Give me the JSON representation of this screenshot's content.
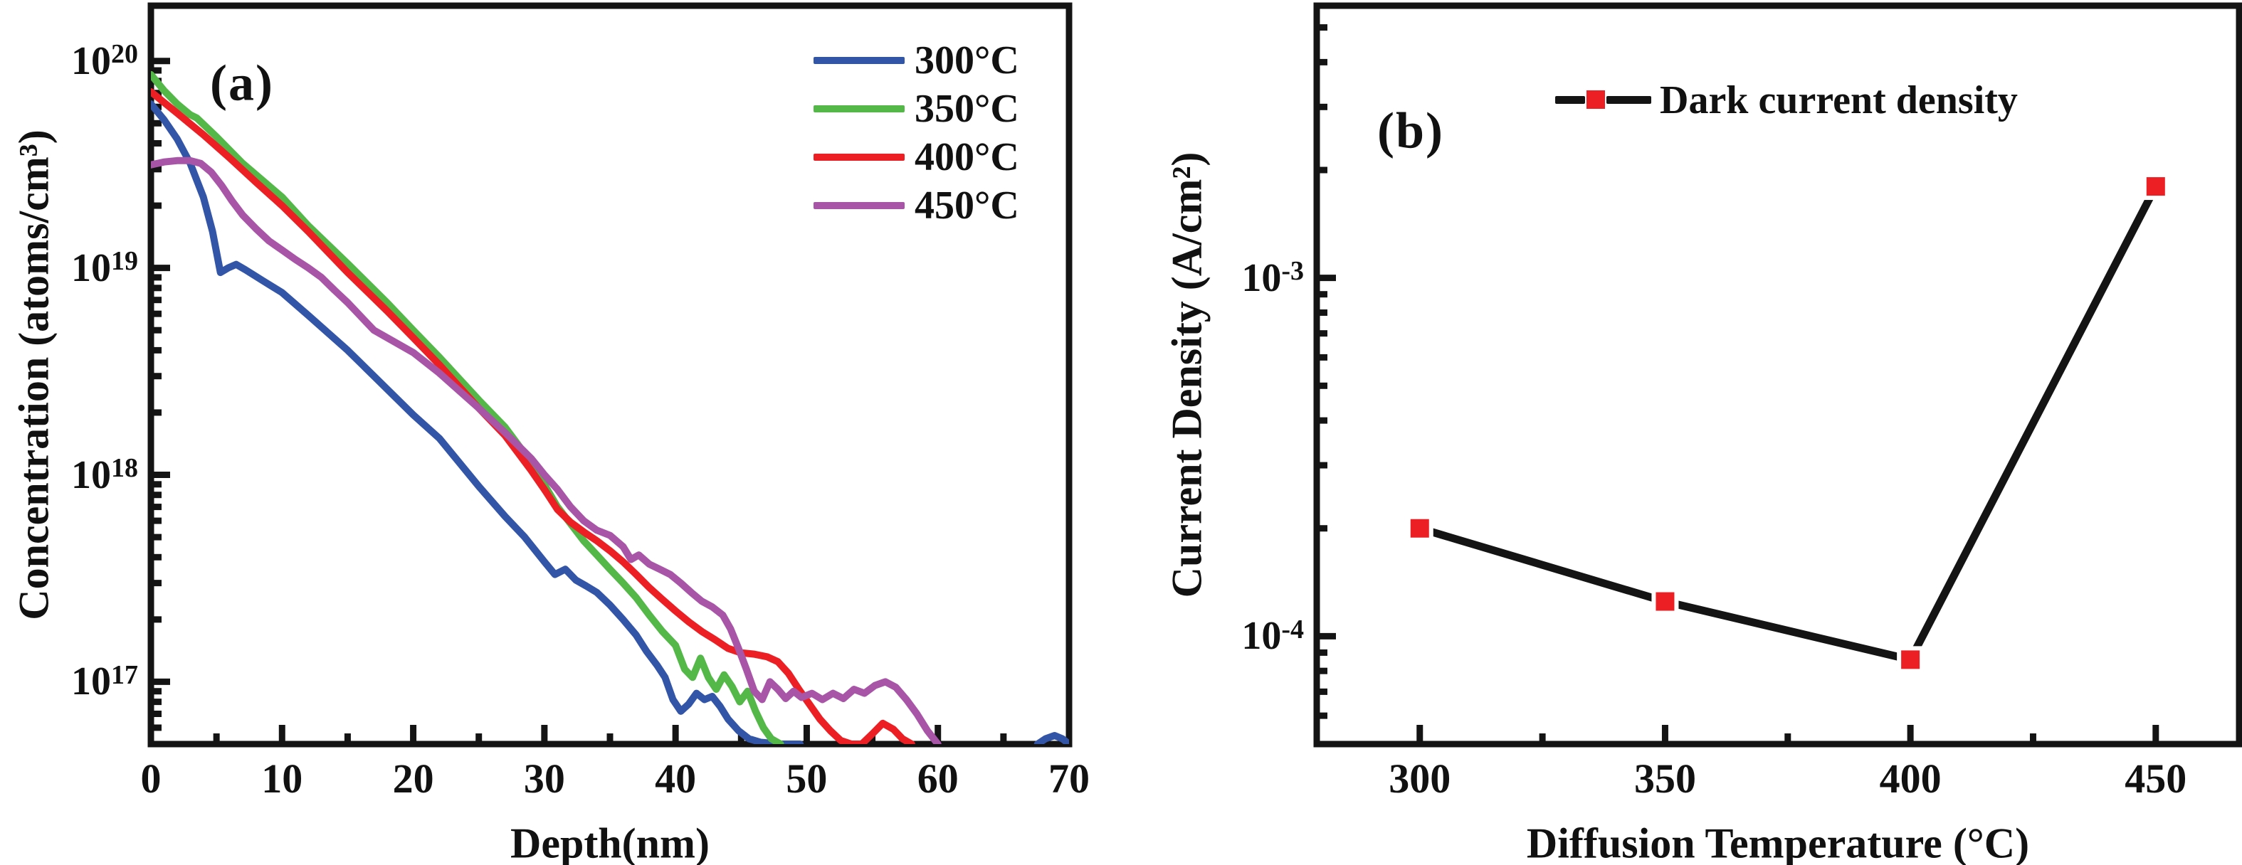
{
  "figure": {
    "background": "#ffffff",
    "axis_color": "#141414"
  },
  "chart_data": [
    {
      "id": "a",
      "type": "line",
      "panel_label": "(a)",
      "xlabel": "Depth(nm)",
      "ylabel": "Concentration (atoms/cm³)",
      "xlim": [
        0,
        70
      ],
      "x_major_ticks": [
        0,
        10,
        20,
        30,
        40,
        50,
        60,
        70
      ],
      "x_minor_ticks": [
        5,
        15,
        25,
        35,
        45,
        55,
        65
      ],
      "yscale": "log",
      "ylim": [
        5e+16,
        1.85e+20
      ],
      "y_major_exponents": [
        20,
        19,
        18,
        17
      ],
      "grid": false,
      "legend_position": "top-right-inside",
      "legend": [
        {
          "label": "300°C",
          "color": "#3355A8"
        },
        {
          "label": "350°C",
          "color": "#53B848"
        },
        {
          "label": "400°C",
          "color": "#EC2024"
        },
        {
          "label": "450°C",
          "color": "#A855A8"
        }
      ],
      "series": [
        {
          "name": "300°C",
          "color": "#3355A8",
          "segments": [
            [
              [
                0,
                6.2e+19
              ],
              [
                1,
                5.2e+19
              ],
              [
                2,
                4.2e+19
              ],
              [
                3,
                3.2e+19
              ],
              [
                4,
                2.2e+19
              ],
              [
                4.7,
                1.5e+19
              ],
              [
                5.3,
                9.5e+18
              ],
              [
                5.9,
                1e+19
              ],
              [
                6.5,
                1.04e+19
              ],
              [
                7.2,
                9.8e+18
              ],
              [
                8.5,
                8.7e+18
              ],
              [
                10,
                7.6e+18
              ],
              [
                12,
                5.9e+18
              ],
              [
                15,
                4e+18
              ],
              [
                17,
                3e+18
              ],
              [
                20,
                1.95e+18
              ],
              [
                22,
                1.5e+18
              ],
              [
                25,
                8.8e+17
              ],
              [
                27,
                6.3e+17
              ],
              [
                28.5,
                5e+17
              ],
              [
                30,
                3.8e+17
              ],
              [
                30.8,
                3.3e+17
              ],
              [
                31.6,
                3.5e+17
              ],
              [
                32.4,
                3.1e+17
              ],
              [
                33.2,
                2.9e+17
              ],
              [
                34,
                2.7e+17
              ],
              [
                35,
                2.35e+17
              ],
              [
                36,
                2e+17
              ],
              [
                37,
                1.68e+17
              ],
              [
                37.8,
                1.4e+17
              ],
              [
                38.6,
                1.2e+17
              ],
              [
                39.2,
                1.05e+17
              ],
              [
                39.8,
                8.2e+16
              ],
              [
                40.4,
                7.2e+16
              ],
              [
                41,
                7.8e+16
              ],
              [
                41.6,
                8.8e+16
              ],
              [
                42.2,
                8.2e+16
              ],
              [
                42.8,
                8.5e+16
              ],
              [
                43.4,
                7.6e+16
              ],
              [
                44,
                6.6e+16
              ],
              [
                44.8,
                5.8e+16
              ],
              [
                45.6,
                5.3e+16
              ],
              [
                46.5,
                5.1e+16
              ],
              [
                48,
                5e+16
              ],
              [
                49.5,
                5e+16
              ]
            ],
            [
              [
                67.6,
                5e+16
              ],
              [
                68.2,
                5.3e+16
              ],
              [
                68.9,
                5.5e+16
              ],
              [
                69.5,
                5.3e+16
              ],
              [
                70,
                5e+16
              ]
            ]
          ]
        },
        {
          "name": "350°C",
          "color": "#53B848",
          "segments": [
            [
              [
                0,
                8.6e+19
              ],
              [
                1,
                7.2e+19
              ],
              [
                2,
                6.2e+19
              ],
              [
                3,
                5.5e+19
              ],
              [
                3.5,
                5.3e+19
              ],
              [
                5,
                4.3e+19
              ],
              [
                7,
                3.2e+19
              ],
              [
                10,
                2.2e+19
              ],
              [
                12,
                1.6e+19
              ],
              [
                15,
                1.05e+19
              ],
              [
                18,
                6.8e+18
              ],
              [
                20,
                5e+18
              ],
              [
                22,
                3.7e+18
              ],
              [
                25,
                2.3e+18
              ],
              [
                27,
                1.7e+18
              ],
              [
                29,
                1.15e+18
              ],
              [
                31,
                7e+17
              ],
              [
                32,
                5.8e+17
              ],
              [
                33,
                4.8e+17
              ],
              [
                34,
                4.1e+17
              ],
              [
                35,
                3.5e+17
              ],
              [
                36,
                3e+17
              ],
              [
                37,
                2.55e+17
              ],
              [
                38,
                2.1e+17
              ],
              [
                39,
                1.75e+17
              ],
              [
                40,
                1.5e+17
              ],
              [
                40.7,
                1.15e+17
              ],
              [
                41.3,
                1.05e+17
              ],
              [
                41.9,
                1.3e+17
              ],
              [
                42.5,
                1.05e+17
              ],
              [
                43.1,
                9.2e+16
              ],
              [
                43.7,
                1.08e+17
              ],
              [
                44.3,
                9.5e+16
              ],
              [
                44.9,
                8e+16
              ],
              [
                45.5,
                9e+16
              ],
              [
                46.1,
                7.2e+16
              ],
              [
                46.7,
                6e+16
              ],
              [
                47.3,
                5.3e+16
              ],
              [
                48,
                5e+16
              ]
            ]
          ]
        },
        {
          "name": "400°C",
          "color": "#EC2024",
          "segments": [
            [
              [
                0,
                7.1e+19
              ],
              [
                2,
                5.6e+19
              ],
              [
                4,
                4.4e+19
              ],
              [
                6,
                3.4e+19
              ],
              [
                8,
                2.6e+19
              ],
              [
                10,
                2e+19
              ],
              [
                12,
                1.5e+19
              ],
              [
                15,
                9.5e+18
              ],
              [
                18,
                6.2e+18
              ],
              [
                20,
                4.6e+18
              ],
              [
                22,
                3.4e+18
              ],
              [
                25,
                2.1e+18
              ],
              [
                27,
                1.55e+18
              ],
              [
                29,
                1.05e+18
              ],
              [
                30,
                8.5e+17
              ],
              [
                31,
                6.8e+17
              ],
              [
                32,
                5.9e+17
              ],
              [
                33,
                5.3e+17
              ],
              [
                34,
                4.8e+17
              ],
              [
                35,
                4.3e+17
              ],
              [
                36,
                3.8e+17
              ],
              [
                37,
                3.3e+17
              ],
              [
                38,
                2.85e+17
              ],
              [
                39,
                2.5e+17
              ],
              [
                40,
                2.2e+17
              ],
              [
                41,
                1.95e+17
              ],
              [
                42,
                1.75e+17
              ],
              [
                43,
                1.6e+17
              ],
              [
                44,
                1.45e+17
              ],
              [
                45,
                1.38e+17
              ],
              [
                46,
                1.36e+17
              ],
              [
                47,
                1.32e+17
              ],
              [
                47.8,
                1.25e+17
              ],
              [
                48.6,
                1.1e+17
              ],
              [
                49.4,
                9.2e+16
              ],
              [
                50.2,
                7.8e+16
              ],
              [
                51,
                6.6e+16
              ],
              [
                51.8,
                5.8e+16
              ],
              [
                52.6,
                5.2e+16
              ],
              [
                53.4,
                5e+16
              ],
              [
                54.2,
                5e+16
              ],
              [
                55,
                5.6e+16
              ],
              [
                55.8,
                6.3e+16
              ],
              [
                56.6,
                5.9e+16
              ],
              [
                57.3,
                5.3e+16
              ],
              [
                58,
                5e+16
              ]
            ]
          ]
        },
        {
          "name": "450°C",
          "color": "#A855A8",
          "segments": [
            [
              [
                0,
                3.15e+19
              ],
              [
                1,
                3.25e+19
              ],
              [
                2,
                3.3e+19
              ],
              [
                3,
                3.3e+19
              ],
              [
                3.8,
                3.2e+19
              ],
              [
                4.6,
                2.9e+19
              ],
              [
                5.4,
                2.5e+19
              ],
              [
                6.2,
                2.1e+19
              ],
              [
                7,
                1.8e+19
              ],
              [
                8,
                1.55e+19
              ],
              [
                9,
                1.35e+19
              ],
              [
                10,
                1.22e+19
              ],
              [
                11,
                1.1e+19
              ],
              [
                12,
                1e+19
              ],
              [
                13,
                9e+18
              ],
              [
                14,
                7.8e+18
              ],
              [
                15,
                6.8e+18
              ],
              [
                17,
                5e+18
              ],
              [
                20,
                3.9e+18
              ],
              [
                22,
                3.1e+18
              ],
              [
                25,
                2.1e+18
              ],
              [
                27,
                1.6e+18
              ],
              [
                29,
                1.2e+18
              ],
              [
                30,
                1e+18
              ],
              [
                31,
                8.5e+17
              ],
              [
                32,
                7e+17
              ],
              [
                33,
                6e+17
              ],
              [
                34,
                5.4e+17
              ],
              [
                35,
                5.1e+17
              ],
              [
                36,
                4.5e+17
              ],
              [
                36.6,
                3.9e+17
              ],
              [
                37.2,
                4.1e+17
              ],
              [
                38,
                3.7e+17
              ],
              [
                38.8,
                3.5e+17
              ],
              [
                39.6,
                3.3e+17
              ],
              [
                40.4,
                3e+17
              ],
              [
                41.2,
                2.7e+17
              ],
              [
                42,
                2.45e+17
              ],
              [
                42.8,
                2.3e+17
              ],
              [
                43.6,
                2.1e+17
              ],
              [
                44.2,
                1.8e+17
              ],
              [
                44.8,
                1.45e+17
              ],
              [
                45.4,
                1.15e+17
              ],
              [
                46,
                9e+16
              ],
              [
                46.6,
                8.2e+16
              ],
              [
                47.2,
                1e+17
              ],
              [
                47.8,
                9.2e+16
              ],
              [
                48.4,
                8.3e+16
              ],
              [
                49,
                9e+16
              ],
              [
                49.6,
                8.4e+16
              ],
              [
                50.4,
                8.8e+16
              ],
              [
                51.2,
                8.2e+16
              ],
              [
                52,
                8.8e+16
              ],
              [
                52.8,
                8.3e+16
              ],
              [
                53.6,
                9.2e+16
              ],
              [
                54.4,
                8.8e+16
              ],
              [
                55.2,
                9.6e+16
              ],
              [
                56,
                1e+17
              ],
              [
                56.8,
                9.4e+16
              ],
              [
                57.6,
                8.2e+16
              ],
              [
                58.4,
                7e+16
              ],
              [
                59.2,
                5.8e+16
              ],
              [
                60,
                5e+16
              ]
            ]
          ]
        }
      ]
    },
    {
      "id": "b",
      "type": "line",
      "panel_label": "(b)",
      "xlabel": "Diffusion Temperature (°C)",
      "ylabel": "Current Density (A/cm²)",
      "xlim": [
        279,
        467
      ],
      "x_major_ticks": [
        300,
        350,
        400,
        450
      ],
      "x_minor_ticks": [
        325,
        375,
        425
      ],
      "yscale": "log",
      "ylim": [
        5e-05,
        0.00575
      ],
      "y_major_exponents": [
        -3,
        -4
      ],
      "grid": false,
      "legend_position": "top-center-inside",
      "legend": [
        {
          "label": "Dark current density",
          "line_color": "#141414",
          "marker": "square",
          "marker_color": "#EC2024"
        }
      ],
      "series": [
        {
          "name": "Dark current density",
          "color": "#141414",
          "marker": "square",
          "marker_color": "#EC2024",
          "points": [
            [
              300,
              0.0002
            ],
            [
              350,
              0.000125
            ],
            [
              400,
              8.6e-05
            ],
            [
              450,
              0.0018
            ]
          ]
        }
      ]
    }
  ]
}
